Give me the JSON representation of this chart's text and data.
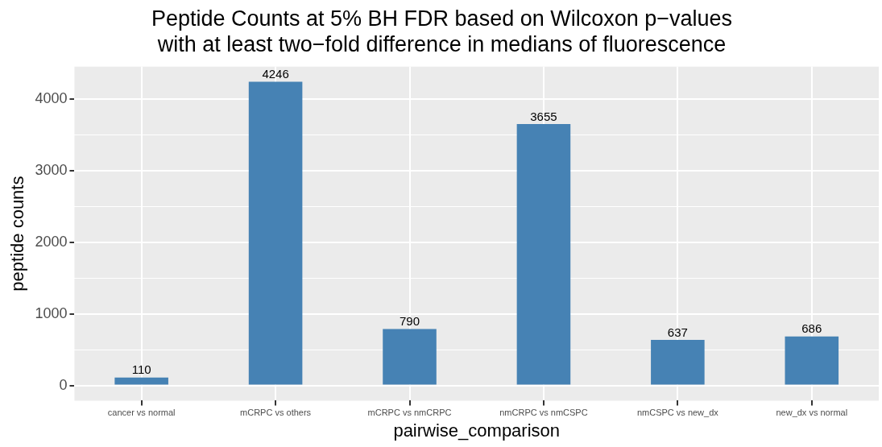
{
  "chart_data": {
    "type": "bar",
    "title": [
      "Peptide Counts at 5% BH FDR based on Wilcoxon p−values",
      "with at least two−fold difference in medians of fluorescence"
    ],
    "xlabel": "pairwise_comparison",
    "ylabel": "peptide counts",
    "categories": [
      "cancer vs normal",
      "mCRPC vs others",
      "mCRPC vs nmCRPC",
      "nmCRPC vs nmCSPC",
      "nmCSPC vs new_dx",
      "new_dx vs normal"
    ],
    "values": [
      110,
      4246,
      790,
      3655,
      637,
      686
    ],
    "color": "#4682b4",
    "ylim": [
      -212,
      4458
    ],
    "yticks": [
      0,
      {
        "value": 500,
        "label": null
      },
      1000,
      {
        "value": 1500,
        "label": null
      },
      2000,
      {
        "value": 2500,
        "label": null
      },
      3000,
      {
        "value": 3500,
        "label": null
      },
      4000
    ],
    "grid": true,
    "data_labels": true
  }
}
